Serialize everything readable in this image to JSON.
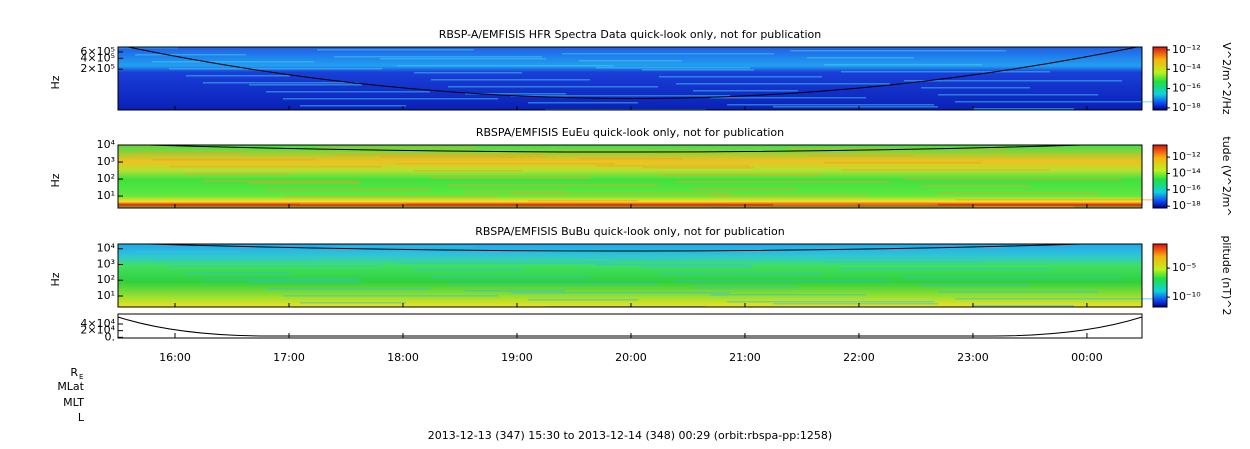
{
  "chart_data": [
    {
      "type": "spectrogram",
      "title": "RBSP-A/EMFISIS  HFR Spectra Data quick-look only, not for publication",
      "ylabel": "Hz",
      "log_y": true,
      "ylim": [
        15000,
        820000
      ],
      "yticks": [
        {
          "value": 600000,
          "label": "6×10⁵"
        },
        {
          "value": 400000,
          "label": "4×10⁵"
        },
        {
          "value": 200000,
          "label": "2×10⁵"
        }
      ],
      "colorbar_label": "V^2/m^2/Hz",
      "clim": [
        6e-19,
        2e-12
      ],
      "cticks": [
        {
          "value": 1e-12,
          "label": "10⁻¹²"
        },
        {
          "value": 1e-14,
          "label": "10⁻¹⁴"
        },
        {
          "value": 1e-16,
          "label": "10⁻¹⁶"
        },
        {
          "value": 1e-18,
          "label": "10⁻¹⁸"
        }
      ]
    },
    {
      "type": "spectrogram",
      "title": "RBSPA/EMFISIS  EuEu quick-look only, not for publication",
      "ylabel": "Hz",
      "log_y": true,
      "ylim": [
        2,
        10000
      ],
      "yticks": [
        {
          "value": 10000,
          "label": "10⁴"
        },
        {
          "value": 1000,
          "label": "10³"
        },
        {
          "value": 100,
          "label": "10²"
        },
        {
          "value": 10,
          "label": "10¹"
        }
      ],
      "colorbar_label": "tude (V^2/m^",
      "clim": [
        6e-19,
        3e-11
      ],
      "cticks": [
        {
          "value": 1e-12,
          "label": "10⁻¹²"
        },
        {
          "value": 1e-14,
          "label": "10⁻¹⁴"
        },
        {
          "value": 1e-16,
          "label": "10⁻¹⁶"
        },
        {
          "value": 1e-18,
          "label": "10⁻¹⁸"
        }
      ]
    },
    {
      "type": "spectrogram",
      "title": "RBSPA/EMFISIS  BuBu quick-look only, not for publication",
      "ylabel": "Hz",
      "log_y": true,
      "ylim": [
        2,
        20000
      ],
      "yticks": [
        {
          "value": 10000,
          "label": "10⁴"
        },
        {
          "value": 1000,
          "label": "10³"
        },
        {
          "value": 100,
          "label": "10²"
        },
        {
          "value": 10,
          "label": "10¹"
        }
      ],
      "colorbar_label": "plitude (nT)^2",
      "clim": [
        2e-12,
        0.14
      ],
      "cticks": [
        {
          "value": 1e-05,
          "label": "10⁻⁵"
        },
        {
          "value": 1e-10,
          "label": "10⁻¹⁰"
        }
      ]
    },
    {
      "type": "line",
      "ylim": [
        -2000,
        70000
      ],
      "yticks": [
        {
          "value": 40000,
          "label": "4×10⁴"
        },
        {
          "value": 20000,
          "label": "2×10⁴"
        },
        {
          "value": 0,
          "label": "0."
        }
      ],
      "xlim": [
        15.5,
        24.483
      ],
      "xticks": [
        {
          "value": 16,
          "label": "16:00"
        },
        {
          "value": 17,
          "label": "17:00"
        },
        {
          "value": 18,
          "label": "18:00"
        },
        {
          "value": 19,
          "label": "19:00"
        },
        {
          "value": 20,
          "label": "20:00"
        },
        {
          "value": 21,
          "label": "21:00"
        },
        {
          "value": 22,
          "label": "22:00"
        },
        {
          "value": 23,
          "label": "23:00"
        },
        {
          "value": 24,
          "label": "00:00"
        }
      ],
      "row_labels": [
        "R",
        "E",
        "MLat",
        "MLT",
        "L"
      ],
      "footer": "2013-12-13 (347) 15:30 to 2013-12-14 (348) 00:29 (orbit:rbspa-pp:1258)"
    }
  ]
}
